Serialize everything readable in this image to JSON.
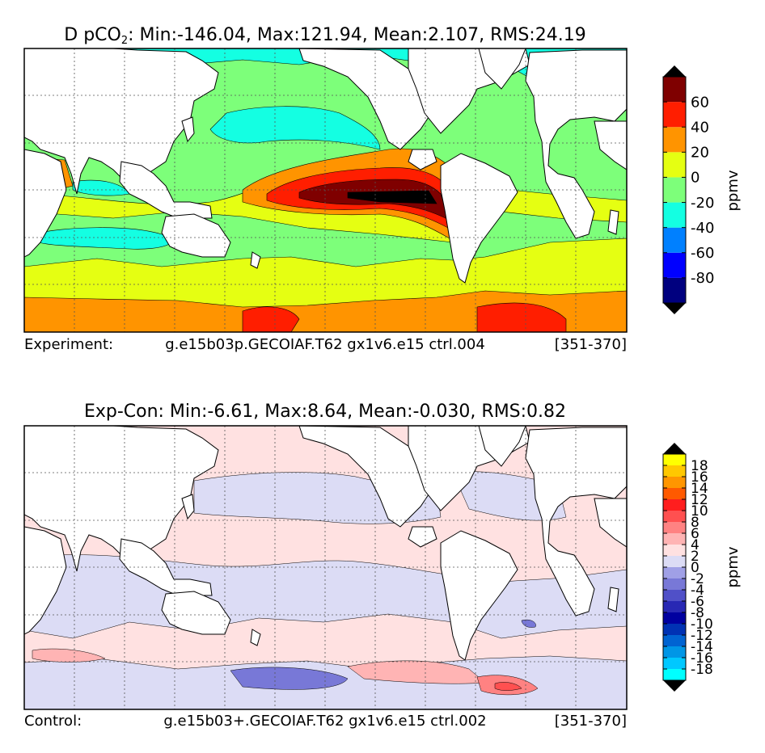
{
  "chart_data": [
    {
      "type": "heatmap",
      "title": "D pCO2: Min:-146.04, Max:121.94, Mean:2.107, RMS:24.19",
      "title_parts": {
        "main": "D pCO",
        "sub": "2",
        "rest": ": Min:-146.04, Max:121.94, Mean:2.107, RMS:24.19"
      },
      "stats": {
        "min": -146.04,
        "max": 121.94,
        "mean": 2.107,
        "rms": 24.19
      },
      "variable": "D pCO2",
      "colorbar": {
        "label": "ppmv",
        "tick_labels": [
          "-80",
          "-60",
          "-40",
          "-20",
          "0",
          "20",
          "40",
          "60"
        ],
        "levels": [
          -100,
          -80,
          -60,
          -40,
          -20,
          0,
          20,
          40,
          60,
          80
        ],
        "colors": [
          "#00007f",
          "#0000ff",
          "#0080ff",
          "#14ffe2",
          "#7dff7a",
          "#e5ff12",
          "#ff9400",
          "#ff1e00",
          "#7f0000"
        ],
        "extend_colors": {
          "under": "#000000",
          "over": "#000000"
        }
      },
      "footer": {
        "left": "Experiment:",
        "center": "g.e15b03p.GECOIAF.T62 gx1v6.e15 ctrl.004",
        "right": "[351-370]"
      },
      "grid": true,
      "colors": {
        "land": "#ffffff",
        "background_ocean": "#7dff7a",
        "coastline": "#000000",
        "grid": "#555555"
      }
    },
    {
      "type": "heatmap",
      "title": "Exp-Con: Min:-6.61, Max:8.64, Mean:-0.030, RMS:0.82",
      "stats": {
        "min": -6.61,
        "max": 8.64,
        "mean": -0.03,
        "rms": 0.82
      },
      "colorbar": {
        "label": "ppmv",
        "tick_labels": [
          "-18",
          "-16",
          "-14",
          "-12",
          "-10",
          "-8",
          "-6",
          "-4",
          "-2",
          "0",
          "2",
          "4",
          "6",
          "8",
          "10",
          "12",
          "14",
          "16",
          "18"
        ],
        "levels": [
          -20,
          -18,
          -16,
          -14,
          -12,
          -10,
          -8,
          -6,
          -4,
          -2,
          0,
          2,
          4,
          6,
          8,
          10,
          12,
          14,
          16,
          18,
          20
        ],
        "colors": [
          "#00ffff",
          "#00c8ff",
          "#0096e6",
          "#0064d2",
          "#0032b4",
          "#0000a0",
          "#2828b4",
          "#5050c8",
          "#7878d7",
          "#a0a0e6",
          "#dcdcf5",
          "#ffe1e1",
          "#ffb4b4",
          "#ff8282",
          "#ff5050",
          "#ff1e1e",
          "#ff5a00",
          "#ff9600",
          "#ffc800",
          "#ffff00"
        ],
        "extend_colors": {
          "under": "#000000",
          "over": "#000000"
        }
      },
      "footer": {
        "left": "Control:",
        "center": "g.e15b03+.GECOIAF.T62 gx1v6.e15 ctrl.002",
        "right": "[351-370]"
      },
      "grid": true,
      "colors": {
        "land": "#ffffff",
        "background_ocean": "#ffe1e1",
        "coastline": "#000000",
        "grid": "#555555"
      }
    }
  ]
}
